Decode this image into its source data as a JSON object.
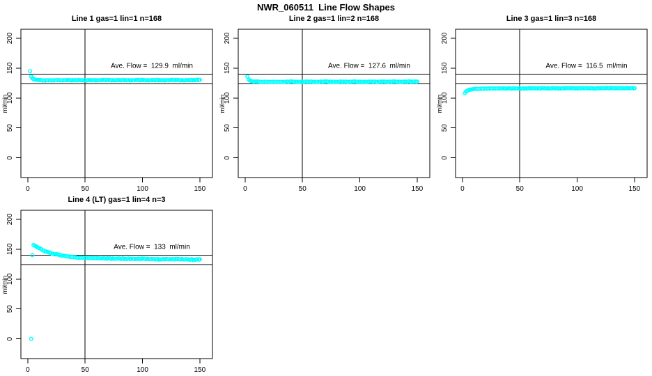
{
  "figure": {
    "title": "NWR_060511  Line Flow Shapes",
    "background": "#ffffff",
    "point_color": "#00ffff",
    "axis_color": "#000000"
  },
  "chart_data": [
    {
      "type": "scatter",
      "title": "Line 1 gas=1 lin=1 n=168",
      "annotation": "Ave. Flow =  129.9  ml/min",
      "ave_flow": 129.9,
      "ylabel": "ml/min",
      "xticks": [
        0,
        50,
        100,
        150
      ],
      "yticks": [
        0,
        50,
        100,
        150,
        200
      ],
      "xlim": [
        -6,
        161
      ],
      "ylim": [
        -33,
        215
      ],
      "vline": 50,
      "hlines": [
        140,
        124
      ],
      "jitter": 0.4,
      "outliers": [],
      "points": [
        [
          2,
          145
        ],
        [
          3,
          136
        ],
        [
          4,
          133
        ],
        [
          5,
          131.5
        ],
        [
          6,
          131
        ],
        [
          8,
          130.5
        ],
        [
          10,
          130
        ],
        [
          14,
          129.5
        ],
        [
          18,
          129.5
        ],
        [
          22,
          129.5
        ],
        [
          26,
          130
        ],
        [
          30,
          129.5
        ],
        [
          35,
          130
        ],
        [
          40,
          129.5
        ],
        [
          45,
          130
        ],
        [
          50,
          129.5
        ],
        [
          55,
          130
        ],
        [
          60,
          129.5
        ],
        [
          65,
          130
        ],
        [
          70,
          130
        ],
        [
          75,
          129.5
        ],
        [
          80,
          130
        ],
        [
          85,
          130
        ],
        [
          90,
          129.5
        ],
        [
          95,
          130
        ],
        [
          100,
          130
        ],
        [
          105,
          129.5
        ],
        [
          110,
          130
        ],
        [
          115,
          130
        ],
        [
          120,
          129.5
        ],
        [
          125,
          130
        ],
        [
          130,
          130
        ],
        [
          135,
          129.5
        ],
        [
          140,
          130
        ],
        [
          145,
          130
        ],
        [
          150,
          130.5
        ]
      ]
    },
    {
      "type": "scatter",
      "title": "Line 2 gas=1 lin=2 n=168",
      "annotation": "Ave. Flow =  127.6  ml/min",
      "ave_flow": 127.6,
      "ylabel": "ml/min",
      "xticks": [
        0,
        50,
        100,
        150
      ],
      "yticks": [
        0,
        50,
        100,
        150,
        200
      ],
      "xlim": [
        -6,
        161
      ],
      "ylim": [
        -33,
        215
      ],
      "vline": 50,
      "hlines": [
        140,
        124
      ],
      "jitter": 0.4,
      "outliers": [],
      "points": [
        [
          2,
          136
        ],
        [
          3,
          131.5
        ],
        [
          4,
          129.5
        ],
        [
          5,
          128.5
        ],
        [
          6,
          128
        ],
        [
          8,
          127.5
        ],
        [
          10,
          127.5
        ],
        [
          14,
          127
        ],
        [
          18,
          127
        ],
        [
          22,
          127
        ],
        [
          26,
          127
        ],
        [
          30,
          127
        ],
        [
          35,
          127
        ],
        [
          40,
          127.5
        ],
        [
          45,
          127
        ],
        [
          50,
          127
        ],
        [
          55,
          127.5
        ],
        [
          60,
          127
        ],
        [
          65,
          127
        ],
        [
          70,
          127.5
        ],
        [
          75,
          127
        ],
        [
          80,
          127
        ],
        [
          85,
          127.5
        ],
        [
          90,
          127
        ],
        [
          95,
          127.5
        ],
        [
          100,
          127
        ],
        [
          105,
          127
        ],
        [
          110,
          127.5
        ],
        [
          115,
          127
        ],
        [
          120,
          127.5
        ],
        [
          125,
          127
        ],
        [
          130,
          127.5
        ],
        [
          135,
          127
        ],
        [
          140,
          127.5
        ],
        [
          145,
          127.5
        ],
        [
          150,
          127.5
        ]
      ]
    },
    {
      "type": "scatter",
      "title": "Line 3 gas=1 lin=3 n=168",
      "annotation": "Ave. Flow =  116.5  ml/min",
      "ave_flow": 116.5,
      "ylabel": "ml/min",
      "xticks": [
        0,
        50,
        100,
        150
      ],
      "yticks": [
        0,
        50,
        100,
        150,
        200
      ],
      "xlim": [
        -6,
        161
      ],
      "ylim": [
        -33,
        215
      ],
      "vline": 50,
      "hlines": [
        140,
        124
      ],
      "jitter": 0.4,
      "outliers": [],
      "points": [
        [
          2,
          108
        ],
        [
          3,
          110.5
        ],
        [
          4,
          112
        ],
        [
          5,
          113
        ],
        [
          6,
          114
        ],
        [
          8,
          114.5
        ],
        [
          10,
          115
        ],
        [
          14,
          115.5
        ],
        [
          18,
          115.5
        ],
        [
          22,
          116
        ],
        [
          26,
          116
        ],
        [
          30,
          116
        ],
        [
          35,
          116
        ],
        [
          40,
          116
        ],
        [
          45,
          116
        ],
        [
          50,
          116
        ],
        [
          55,
          116
        ],
        [
          60,
          116.5
        ],
        [
          65,
          116
        ],
        [
          70,
          116.5
        ],
        [
          75,
          116
        ],
        [
          80,
          116.5
        ],
        [
          85,
          116
        ],
        [
          90,
          116.5
        ],
        [
          95,
          116.5
        ],
        [
          100,
          116
        ],
        [
          105,
          116.5
        ],
        [
          110,
          116.5
        ],
        [
          115,
          116
        ],
        [
          120,
          116.5
        ],
        [
          125,
          116.5
        ],
        [
          130,
          116.5
        ],
        [
          135,
          116.5
        ],
        [
          140,
          116.5
        ],
        [
          145,
          116.5
        ],
        [
          150,
          116.5
        ]
      ]
    },
    {
      "type": "scatter",
      "title": "Line 4 (LT) gas=1 lin=4 n=3",
      "annotation": "Ave. Flow =  133  ml/min",
      "ave_flow": 133,
      "ylabel": "ml/min",
      "xticks": [
        0,
        50,
        100,
        150
      ],
      "yticks": [
        0,
        50,
        100,
        150,
        200
      ],
      "xlim": [
        -6,
        161
      ],
      "ylim": [
        -33,
        215
      ],
      "vline": 50,
      "hlines": [
        140,
        124
      ],
      "jitter": 0.7,
      "outliers": [
        [
          3,
          0
        ],
        [
          4,
          140
        ]
      ],
      "points": [
        [
          5,
          157
        ],
        [
          6,
          156
        ],
        [
          7,
          155
        ],
        [
          8,
          153.5
        ],
        [
          9,
          152.5
        ],
        [
          10,
          151.5
        ],
        [
          12,
          149.5
        ],
        [
          14,
          147.5
        ],
        [
          16,
          146
        ],
        [
          18,
          144.5
        ],
        [
          20,
          143.5
        ],
        [
          22,
          142.5
        ],
        [
          24,
          141.5
        ],
        [
          26,
          141
        ],
        [
          28,
          140
        ],
        [
          30,
          139.5
        ],
        [
          33,
          138.5
        ],
        [
          36,
          137.5
        ],
        [
          40,
          136.5
        ],
        [
          44,
          136
        ],
        [
          48,
          135.5
        ],
        [
          52,
          135.5
        ],
        [
          56,
          135
        ],
        [
          60,
          135
        ],
        [
          65,
          134.5
        ],
        [
          70,
          134.5
        ],
        [
          75,
          134
        ],
        [
          80,
          134.5
        ],
        [
          85,
          134
        ],
        [
          90,
          134
        ],
        [
          95,
          133.5
        ],
        [
          100,
          134
        ],
        [
          105,
          133.5
        ],
        [
          110,
          133.5
        ],
        [
          115,
          133
        ],
        [
          120,
          133.5
        ],
        [
          125,
          133
        ],
        [
          130,
          133.5
        ],
        [
          135,
          133
        ],
        [
          140,
          133
        ],
        [
          145,
          132.5
        ],
        [
          150,
          133
        ]
      ]
    }
  ]
}
